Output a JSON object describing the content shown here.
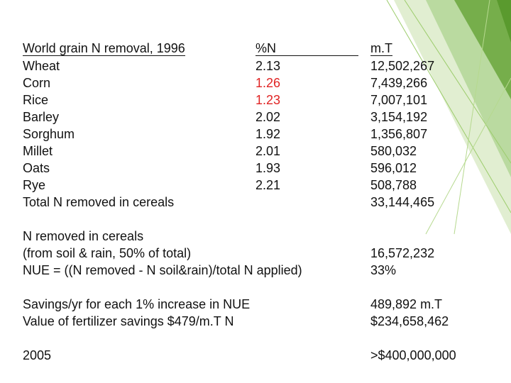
{
  "table": {
    "header": [
      "World grain N removal, 1996",
      "%N",
      "m.T"
    ],
    "rows": [
      {
        "label": "Wheat",
        "percent_n": "2.13",
        "mt": "12,502,267"
      },
      {
        "label": "Corn",
        "percent_n": "1.26",
        "mt": "7,439,266",
        "color": "#e02424"
      },
      {
        "label": "Rice",
        "percent_n": "1.23",
        "mt": "7,007,101",
        "color": "#e02424"
      },
      {
        "label": "Barley",
        "percent_n": "2.02",
        "mt": "3,154,192"
      },
      {
        "label": "Sorghum",
        "percent_n": "1.92",
        "mt": "1,356,807"
      },
      {
        "label": "Millet",
        "percent_n": "2.01",
        "mt": "580,032"
      },
      {
        "label": "Oats",
        "percent_n": "1.93",
        "mt": "596,012"
      },
      {
        "label": "Rye",
        "percent_n": "2.21",
        "mt": "508,788"
      }
    ],
    "total": {
      "label": "Total N removed in cereals",
      "mt": "33,144,465"
    }
  },
  "notes": [
    {
      "lines": [
        "N removed in cereals",
        "(from soil & rain, 50% of total)",
        "NUE = ((N removed - N soil&rain)/total N applied)"
      ],
      "values": [
        null,
        "16,572,232",
        "33%"
      ]
    },
    {
      "lines": [
        "Savings/yr for each 1% increase in NUE",
        "Value of fertilizer savings $479/m.T N"
      ],
      "values": [
        "489,892 m.T",
        "$234,658,462"
      ]
    },
    {
      "lines": [
        "2005"
      ],
      "values": [
        ">$400,000,000"
      ]
    }
  ]
}
